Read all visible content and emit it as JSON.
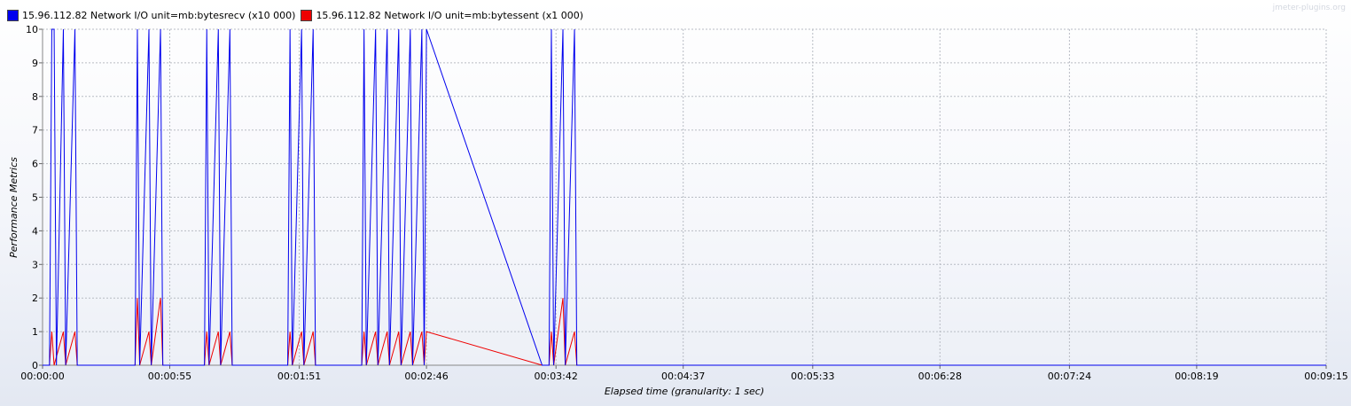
{
  "watermark": "jmeter-plugins.org",
  "chart_data": {
    "type": "line",
    "title": "",
    "xlabel": "Elapsed time (granularity: 1 sec)",
    "ylabel": "Performance Metrics",
    "xlim": [
      0,
      555
    ],
    "ylim": [
      0,
      10
    ],
    "grid": true,
    "legend_position": "top-left",
    "x_ticks": [
      {
        "t": 0,
        "label": "00:00:00"
      },
      {
        "t": 55,
        "label": "00:00:55"
      },
      {
        "t": 111,
        "label": "00:01:51"
      },
      {
        "t": 166,
        "label": "00:02:46"
      },
      {
        "t": 222,
        "label": "00:03:42"
      },
      {
        "t": 277,
        "label": "00:04:37"
      },
      {
        "t": 333,
        "label": "00:05:33"
      },
      {
        "t": 388,
        "label": "00:06:28"
      },
      {
        "t": 444,
        "label": "00:07:24"
      },
      {
        "t": 499,
        "label": "00:08:19"
      },
      {
        "t": 555,
        "label": "00:09:15"
      }
    ],
    "y_ticks": [
      0,
      1,
      2,
      3,
      4,
      5,
      6,
      7,
      8,
      9,
      10
    ],
    "series": [
      {
        "name": "15.96.112.82 Network I/O unit=mb:bytesrecv (x10 000)",
        "color": "#0000ee",
        "points": [
          [
            0,
            0
          ],
          [
            3,
            0
          ],
          [
            4,
            10
          ],
          [
            5,
            10
          ],
          [
            6,
            0
          ],
          [
            9,
            10
          ],
          [
            10,
            0
          ],
          [
            14,
            10
          ],
          [
            15,
            0
          ],
          [
            40,
            0
          ],
          [
            41,
            10
          ],
          [
            42,
            0
          ],
          [
            46,
            10
          ],
          [
            47,
            0
          ],
          [
            51,
            10
          ],
          [
            52,
            0
          ],
          [
            70,
            0
          ],
          [
            71,
            10
          ],
          [
            72,
            0
          ],
          [
            76,
            10
          ],
          [
            77,
            0
          ],
          [
            81,
            10
          ],
          [
            82,
            0
          ],
          [
            106,
            0
          ],
          [
            107,
            10
          ],
          [
            108,
            0
          ],
          [
            112,
            10
          ],
          [
            113,
            0
          ],
          [
            117,
            10
          ],
          [
            118,
            0
          ],
          [
            138,
            0
          ],
          [
            139,
            10
          ],
          [
            140,
            0
          ],
          [
            144,
            10
          ],
          [
            145,
            0
          ],
          [
            149,
            10
          ],
          [
            150,
            0
          ],
          [
            154,
            10
          ],
          [
            155,
            0
          ],
          [
            159,
            10
          ],
          [
            160,
            0
          ],
          [
            164,
            10
          ],
          [
            165,
            0
          ],
          [
            166,
            10
          ],
          [
            216,
            0
          ],
          [
            219,
            0
          ],
          [
            220,
            10
          ],
          [
            221,
            0
          ],
          [
            225,
            10
          ],
          [
            226,
            0
          ],
          [
            230,
            10
          ],
          [
            231,
            0
          ],
          [
            555,
            0
          ]
        ]
      },
      {
        "name": "15.96.112.82 Network I/O unit=mb:bytessent (x1 000)",
        "color": "#ee0000",
        "points": [
          [
            0,
            0
          ],
          [
            3,
            0
          ],
          [
            4,
            1
          ],
          [
            5,
            0
          ],
          [
            9,
            1
          ],
          [
            10,
            0
          ],
          [
            14,
            1
          ],
          [
            15,
            0
          ],
          [
            40,
            0
          ],
          [
            41,
            2
          ],
          [
            42,
            0
          ],
          [
            46,
            1
          ],
          [
            47,
            0
          ],
          [
            51,
            2
          ],
          [
            52,
            0
          ],
          [
            70,
            0
          ],
          [
            71,
            1
          ],
          [
            72,
            0
          ],
          [
            76,
            1
          ],
          [
            77,
            0
          ],
          [
            81,
            1
          ],
          [
            82,
            0
          ],
          [
            106,
            0
          ],
          [
            107,
            1
          ],
          [
            108,
            0
          ],
          [
            112,
            1
          ],
          [
            113,
            0
          ],
          [
            117,
            1
          ],
          [
            118,
            0
          ],
          [
            138,
            0
          ],
          [
            139,
            1
          ],
          [
            140,
            0
          ],
          [
            144,
            1
          ],
          [
            145,
            0
          ],
          [
            149,
            1
          ],
          [
            150,
            0
          ],
          [
            154,
            1
          ],
          [
            155,
            0
          ],
          [
            159,
            1
          ],
          [
            160,
            0
          ],
          [
            164,
            1
          ],
          [
            165,
            0
          ],
          [
            166,
            1
          ],
          [
            216,
            0
          ],
          [
            219,
            0
          ],
          [
            220,
            1
          ],
          [
            221,
            0
          ],
          [
            225,
            2
          ],
          [
            226,
            0
          ],
          [
            230,
            1
          ],
          [
            231,
            0
          ],
          [
            555,
            0
          ]
        ]
      }
    ]
  }
}
